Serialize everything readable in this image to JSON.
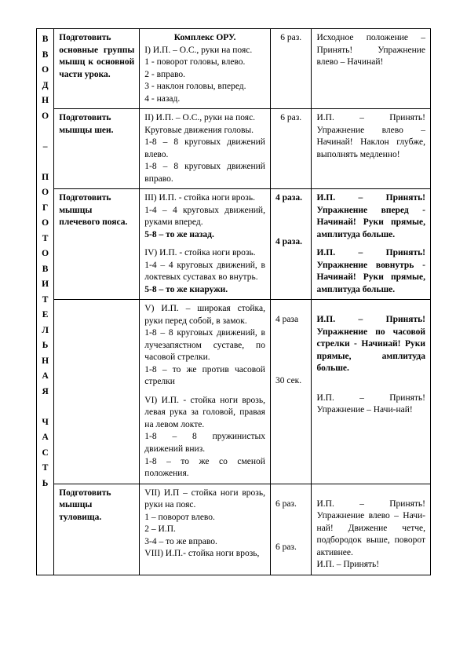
{
  "vertical_label": [
    "В",
    "В",
    "О",
    "Д",
    "Н",
    "О",
    "",
    "–",
    "",
    "П",
    "О",
    "Г",
    "О",
    "Т",
    "О",
    "В",
    "И",
    "Т",
    "Е",
    "Л",
    "Ь",
    "Н",
    "А",
    "Я",
    "",
    "Ч",
    "А",
    "С",
    "Т",
    "Ь"
  ],
  "header_title": "Комплекс ОРУ.",
  "rows": [
    {
      "goal": "Подготовить основные группы мышц к основной части урока.",
      "mid_lines": [
        "I) И.П. – О.С., руки на пояс.",
        "1 - поворот головы, влево.",
        "2 - вправо.",
        "3 - наклон головы, вперед.",
        "4 - назад."
      ],
      "count": "6 раз.",
      "note": "Исходное положение – Принять! Упражнение влево – Начинай!"
    },
    {
      "goal": "Подготовить мышцы шеи.",
      "mid_lines": [
        "II) И.П. – О.С., руки на пояс.",
        "Круговые движения головы.",
        "1-8 – 8 круговых движений влево.",
        "1-8 – 8 круговых движений вправо."
      ],
      "count": "6 раз.",
      "note": "И.П. – Принять! Упражнение влево – Начинай! Наклон глубже, выполнять медленно!"
    },
    {
      "goal": "Подготовить мышцы плечевого пояса.",
      "mid_lines": [
        "III) И.П. - стойка ноги врозь.",
        "1-4 – 4 круговых движений, руками вперед."
      ],
      "mid_lines_bold_trailer": "5-8 – то же назад.",
      "mid2_header": "IV) И.П. - стойка ноги врозь.",
      "mid2_lines": [
        "1-4 – 4 круговых движений, в локтевых суставах во внутрь."
      ],
      "mid2_bold_trailer": "5-8 – то же кнаружи.",
      "count": "4 раза.",
      "count2": "4 раза.",
      "note_bold": "И.П. – Принять! Упражнение вперед - Начинай! Руки прямые, амплитуда больше.",
      "note2_bold": "И.П. – Принять! Упражнение вовнутрь - Начинай! Руки прямые, амплитуда больше."
    },
    {
      "goal": "",
      "mid_lines_v": [
        "V) И.П. – широкая стойка, руки перед собой, в замок.",
        "1-8 – 8 круговых движений, в лучезапястном суставе, по часовой стрелки.",
        "1-8 – то же против часовой стрелки"
      ],
      "mid_lines_vi": [
        "VI) И.П. - стойка ноги врозь, левая рука за головой, правая на левом локте.",
        "1-8 – 8 пружинистых движений вниз.",
        "1-8 – то же со сменой положения."
      ],
      "count_v": "4 раза",
      "count_vi": "30 сек.",
      "note_v_bold": "И.П. – Принять! Упражнение по часовой стрелки - Начинай! Руки прямые, амплитуда больше.",
      "note_vi": "И.П. – Принять! Упражнение – Начи-най!"
    },
    {
      "goal": "Подготовить мышцы туловища.",
      "mid_lines_vii": [
        "VII) И.П – стойка ноги врозь, руки на пояс.",
        "1 – поворот влево.",
        "2 – И.П.",
        "3-4 – то же вправо."
      ],
      "mid_lines_viii": "VIII) И.П.- стойка ноги врозь,",
      "count_vii": "6 раз.",
      "count_viii": "6 раз.",
      "note_vii": "И.П. – Принять! Упражнение влево – Начи-най! Движение четче, подбородок выше, поворот активнее.",
      "note_viii": "И.П. – Принять!"
    }
  ]
}
